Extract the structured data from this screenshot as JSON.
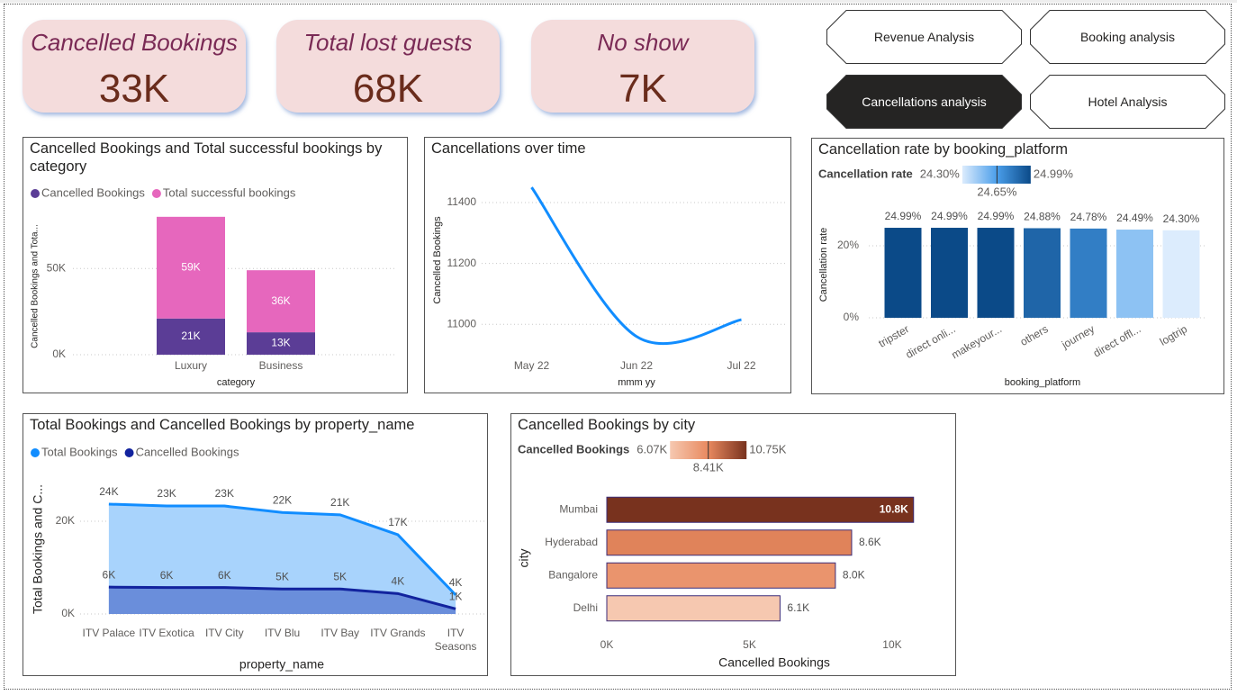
{
  "kpis": [
    {
      "label": "Cancelled Bookings",
      "value": "33K"
    },
    {
      "label": "Total lost guests",
      "value": "68K"
    },
    {
      "label": "No show",
      "value": "7K"
    }
  ],
  "nav_buttons": [
    "Revenue Analysis",
    "Booking analysis",
    "Cancellations analysis",
    "Hotel Analysis"
  ],
  "chart_data": [
    {
      "type": "bar",
      "stacked": true,
      "title": "Cancelled Bookings and Total successful bookings by category",
      "xlabel": "category",
      "ylabel": "Cancelled Bookings and Tota...",
      "categories": [
        "Luxury",
        "Business"
      ],
      "series": [
        {
          "name": "Cancelled Bookings",
          "color": "#5b3d96",
          "values": [
            21000,
            13000
          ],
          "value_labels": [
            "21K",
            "13K"
          ]
        },
        {
          "name": "Total successful bookings",
          "color": "#e667bd",
          "values": [
            59000,
            36000
          ],
          "value_labels": [
            "59K",
            "36K"
          ]
        }
      ],
      "ylim": [
        0,
        82000
      ],
      "yticks": [
        {
          "value": 0,
          "label": "0K"
        },
        {
          "value": 50000,
          "label": "50K"
        }
      ],
      "grid": true,
      "legend": "top-left"
    },
    {
      "type": "line",
      "title": "Cancellations over time",
      "xlabel": "mmm yy",
      "ylabel": "Cancelled Bookings",
      "categories": [
        "May 22",
        "Jun 22",
        "Jul 22"
      ],
      "values": [
        11450,
        10960,
        11015
      ],
      "color": "#118dff",
      "ylim": [
        10900,
        11520
      ],
      "yticks": [
        11000,
        11200,
        11400
      ],
      "grid": true,
      "smooth": true
    },
    {
      "type": "bar",
      "title": "Cancellation rate by booking_platform",
      "xlabel": "booking_platform",
      "ylabel": "Cancellation rate",
      "categories": [
        "tripster",
        "direct onli...",
        "makeyour...",
        "others",
        "journey",
        "direct offl...",
        "logtrip"
      ],
      "values": [
        24.99,
        24.99,
        24.99,
        24.88,
        24.78,
        24.49,
        24.3
      ],
      "value_labels": [
        "24.99%",
        "24.99%",
        "24.99%",
        "24.88%",
        "24.78%",
        "24.49%",
        "24.30%"
      ],
      "ylim": [
        0,
        30
      ],
      "yticks": [
        {
          "value": 0,
          "label": "0%"
        },
        {
          "value": 20,
          "label": "20%"
        }
      ],
      "grid": true,
      "color_scale": {
        "title": "Cancellation rate",
        "stops": [
          {
            "value": 24.3,
            "label": "24.30%",
            "color": "#dcecfd"
          },
          {
            "value": 24.65,
            "label": "24.65%",
            "color": "#4a9eea"
          },
          {
            "value": 24.99,
            "label": "24.99%",
            "color": "#0b4a88"
          }
        ]
      }
    },
    {
      "type": "area",
      "title": "Total Bookings and Cancelled Bookings by property_name",
      "xlabel": "property_name",
      "ylabel": "Total Bookings and C...",
      "categories": [
        "ITV Palace",
        "ITV Exotica",
        "ITV City",
        "ITV Blu",
        "ITV Bay",
        "ITV Grands",
        "ITV Seasons"
      ],
      "series": [
        {
          "name": "Total Bookings",
          "color": "#118dff",
          "fill": "#a8d3fc",
          "values": [
            23700,
            23300,
            23300,
            21900,
            21400,
            17100,
            4100
          ],
          "value_labels": [
            "24K",
            "23K",
            "23K",
            "22K",
            "21K",
            "17K",
            "4K"
          ]
        },
        {
          "name": "Cancelled Bookings",
          "color": "#12239e",
          "fill": "#6a8edb",
          "values": [
            5800,
            5700,
            5700,
            5400,
            5400,
            4400,
            1100
          ],
          "value_labels": [
            "6K",
            "6K",
            "6K",
            "5K",
            "5K",
            "4K",
            "1K"
          ]
        }
      ],
      "ylim": [
        0,
        27000
      ],
      "yticks": [
        {
          "value": 0,
          "label": "0K"
        },
        {
          "value": 20000,
          "label": "20K"
        }
      ],
      "grid": true,
      "legend": "top-left"
    },
    {
      "type": "barh",
      "title": "Cancelled Bookings by city",
      "xlabel": "Cancelled Bookings",
      "ylabel": "city",
      "categories": [
        "Mumbai",
        "Hyderabad",
        "Bangalore",
        "Delhi"
      ],
      "values": [
        10750,
        8580,
        8010,
        6070
      ],
      "value_labels": [
        "10.8K",
        "8.6K",
        "8.0K",
        "6.1K"
      ],
      "xlim": [
        0,
        11250
      ],
      "xticks": [
        {
          "value": 0,
          "label": "0K"
        },
        {
          "value": 5000,
          "label": "5K"
        },
        {
          "value": 10000,
          "label": "10K"
        }
      ],
      "grid": false,
      "color_scale": {
        "title": "Cancelled Bookings",
        "stops": [
          {
            "value": 6070,
            "label": "6.07K",
            "color": "#f6c8b0"
          },
          {
            "value": 8410,
            "label": "8.41K",
            "color": "#e8895f"
          },
          {
            "value": 10750,
            "label": "10.75K",
            "color": "#78321e"
          }
        ]
      }
    }
  ]
}
